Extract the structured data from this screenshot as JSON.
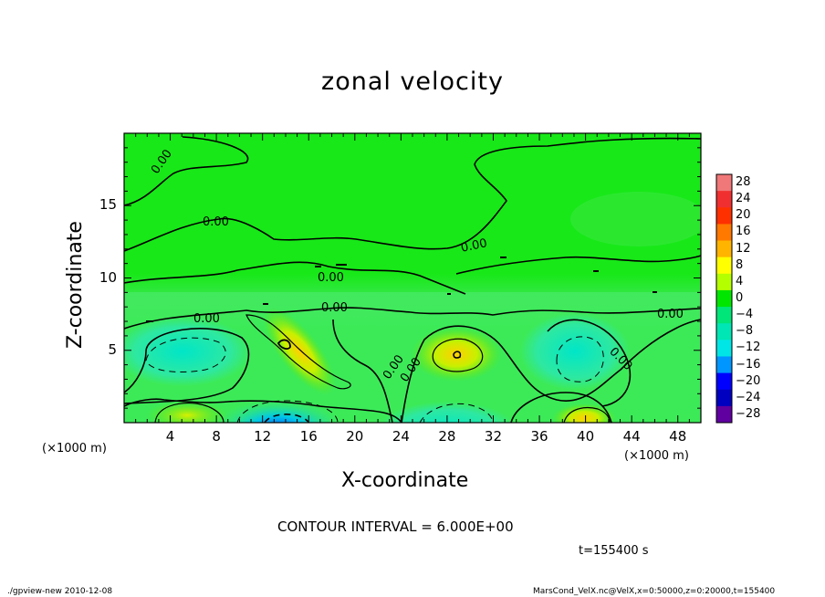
{
  "chart_data": {
    "type": "heatmap",
    "title": "zonal velocity",
    "xlabel": "X-coordinate",
    "ylabel": "Z-coordinate",
    "x_unit_left": "(×1000 m)",
    "x_unit_right": "(×1000 m)",
    "xlim": [
      0,
      50
    ],
    "ylim": [
      0,
      20
    ],
    "x_ticks": [
      4,
      8,
      12,
      16,
      20,
      24,
      28,
      32,
      36,
      40,
      44,
      48
    ],
    "y_ticks": [
      5,
      10,
      15
    ],
    "contour_interval_text": "CONTOUR INTERVAL = 6.000E+00",
    "time_text": "t=155400 s",
    "contour_labels": [
      "0.00",
      "0.00",
      "0.00",
      "0.00",
      "0.00",
      "0.00",
      "0.00",
      "0.00",
      "0.00",
      "0.00",
      "0.00"
    ],
    "colorbar": {
      "levels": [
        28,
        24,
        20,
        16,
        12,
        8,
        4,
        0,
        -4,
        -8,
        -12,
        -16,
        -20,
        -24,
        -28
      ],
      "labels": [
        "28",
        "24",
        "20",
        "16",
        "12",
        "8",
        "4",
        "0",
        "−4",
        "−8",
        "−12",
        "−16",
        "−20",
        "−24",
        "−28"
      ],
      "colors": [
        "#f07878",
        "#f03030",
        "#ff3000",
        "#ff7800",
        "#ffb400",
        "#ffff00",
        "#b4ff00",
        "#00e600",
        "#00e678",
        "#00e6b4",
        "#00e6e6",
        "#0096ff",
        "#0000ff",
        "#0000c0",
        "#6000a0"
      ]
    },
    "features": [
      {
        "x": 5,
        "z": 5,
        "value": -6
      },
      {
        "x": 14,
        "z": 6,
        "value": 10
      },
      {
        "x": 29,
        "z": 4.5,
        "value": 10
      },
      {
        "x": 38,
        "z": 5,
        "value": -8
      },
      {
        "x": 13,
        "z": 0.5,
        "value": -14
      },
      {
        "x": 28,
        "z": 1,
        "value": -8
      },
      {
        "x": 4,
        "z": 1,
        "value": 4
      },
      {
        "x": 40,
        "z": 0.5,
        "value": 8
      }
    ]
  },
  "footer": {
    "left": "./gpview-new  2010-12-08",
    "right": "MarsCond_VelX.nc@VelX,x=0:50000,z=0:20000,t=155400"
  }
}
